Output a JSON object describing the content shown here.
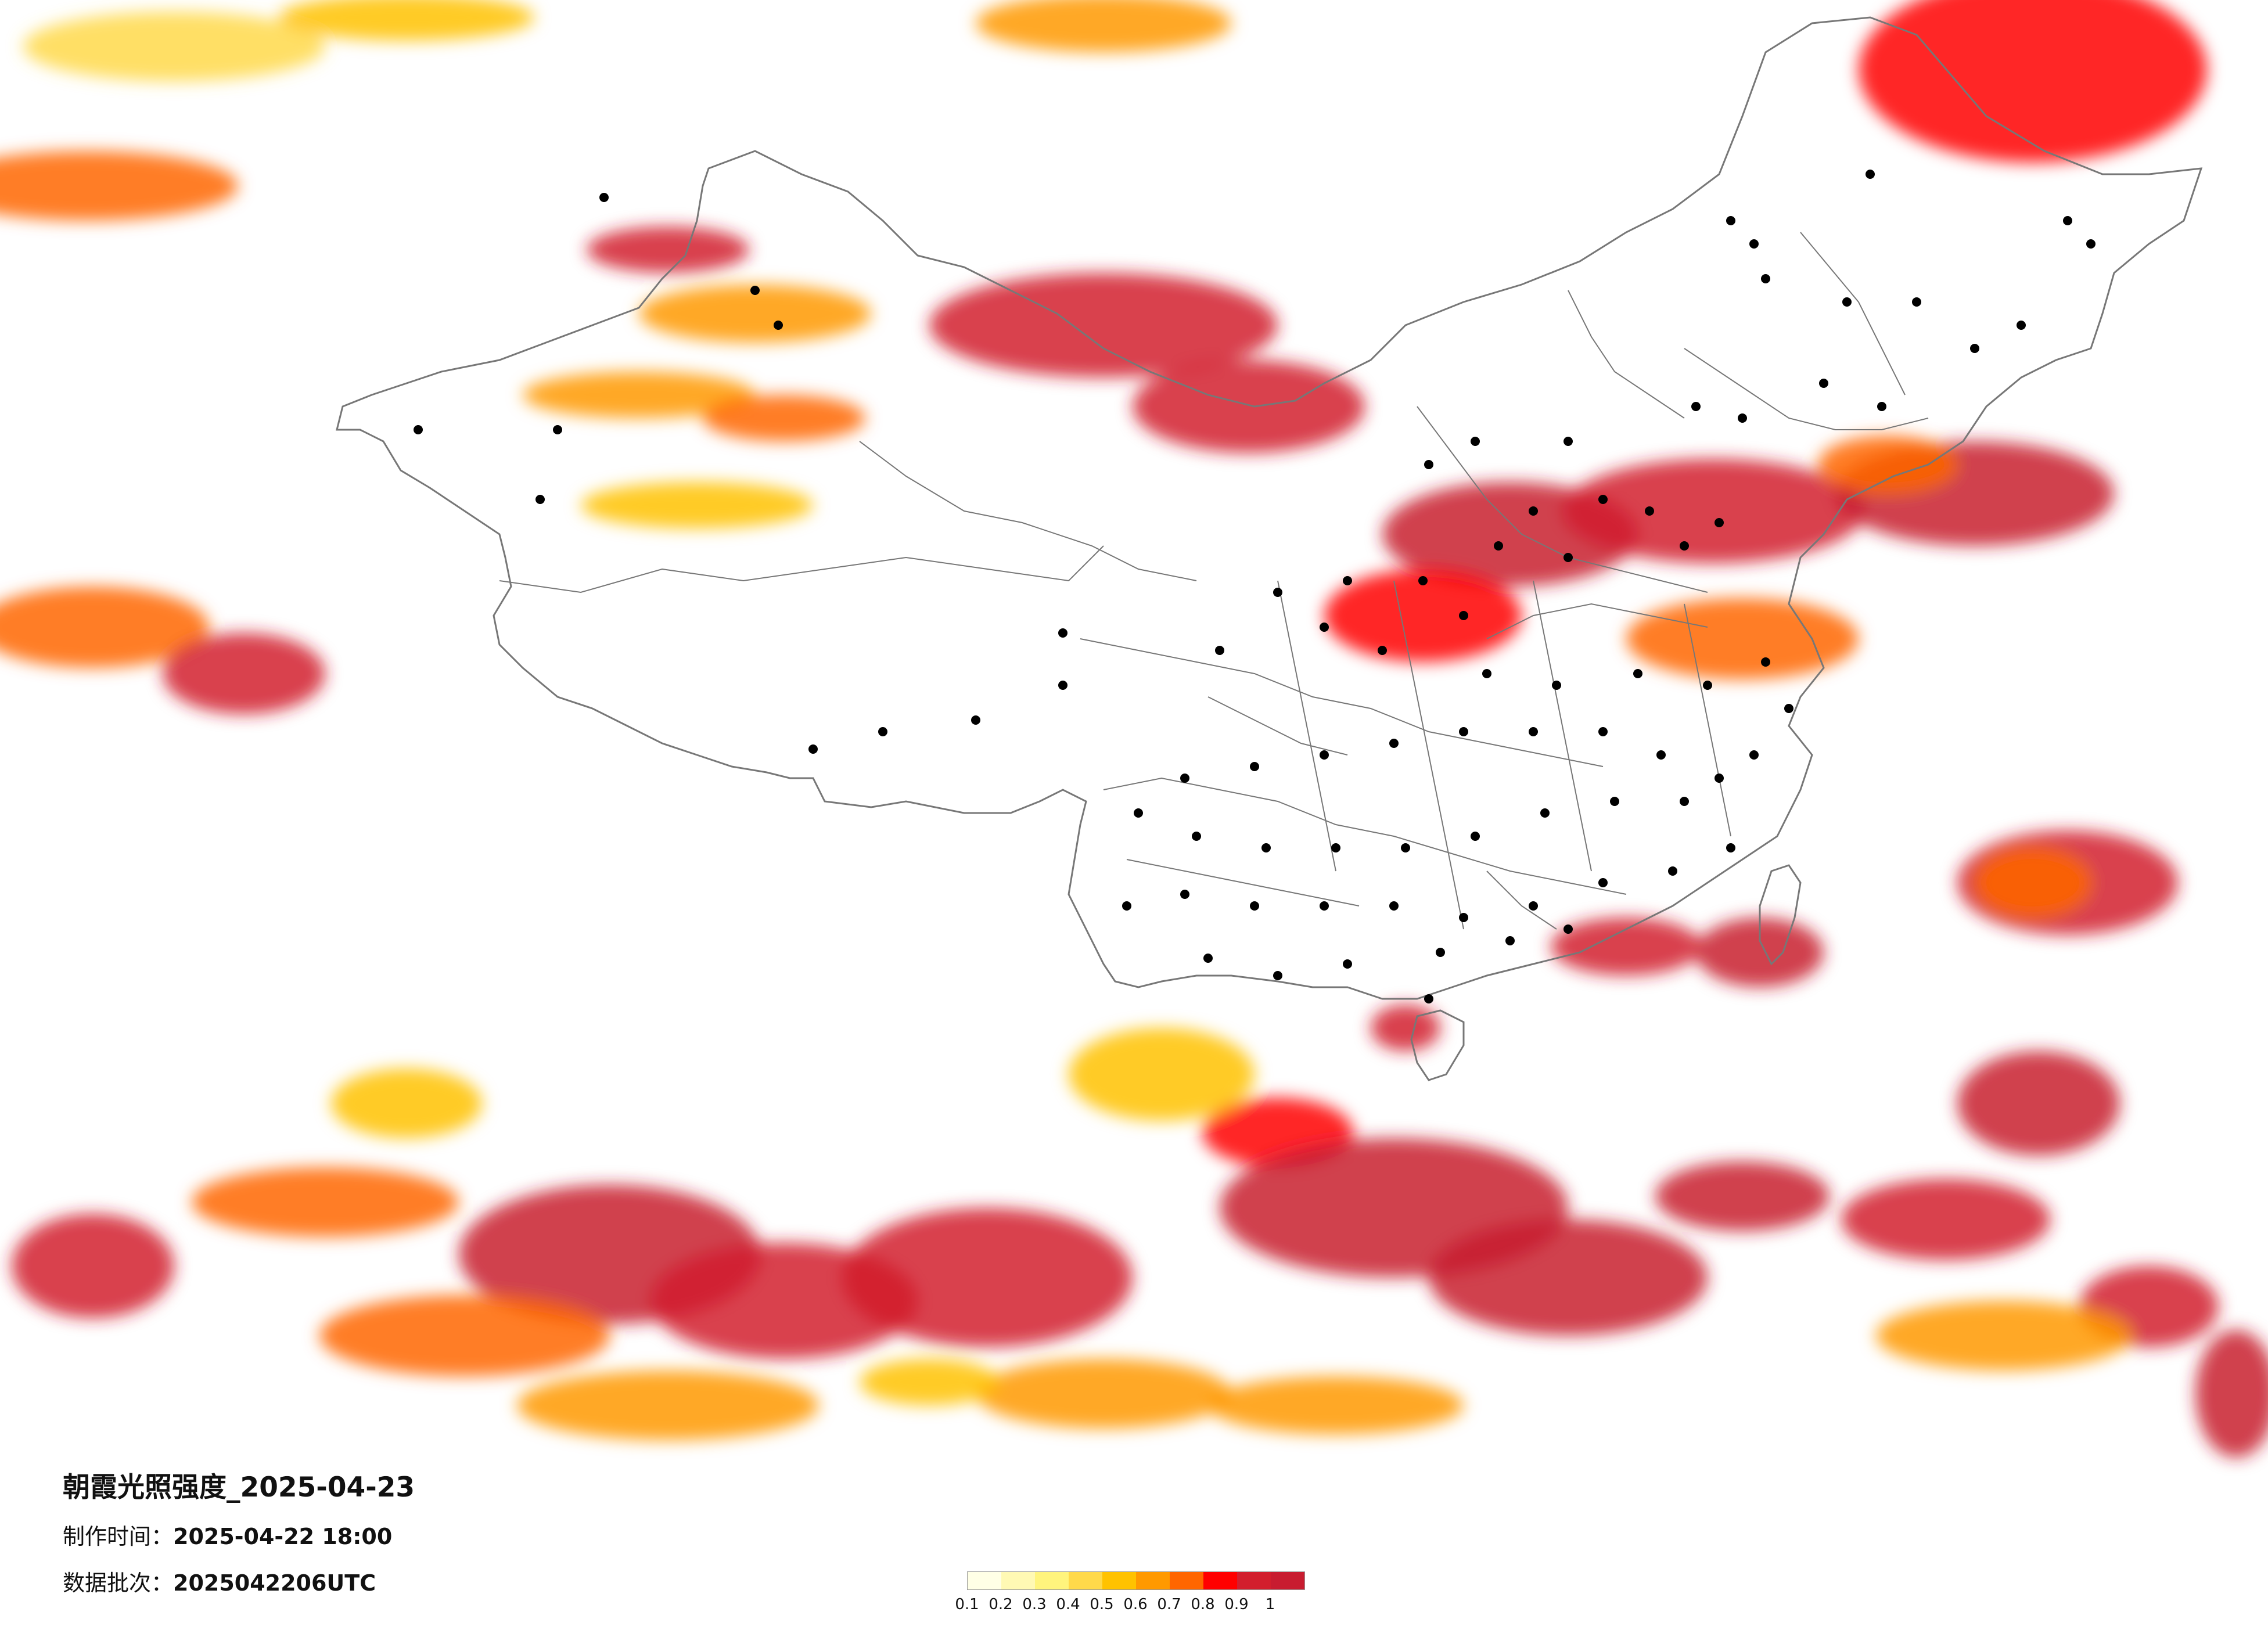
{
  "title": "朝霞光照强度_2025-04-23",
  "production_time_label": "制作时间：",
  "production_time_value": "2025-04-22 18:00",
  "batch_label": "数据批次：",
  "batch_value": "2025042206UTC",
  "legend": {
    "colors": [
      "#ffffe6",
      "#fff9b4",
      "#fff47d",
      "#ffd94a",
      "#ffc200",
      "#ff9900",
      "#ff6600",
      "#ff0000",
      "#d21e2d",
      "#c81c30"
    ],
    "ticks": [
      "0.1",
      "0.2",
      "0.3",
      "0.4",
      "0.5",
      "0.6",
      "0.7",
      "0.8",
      "0.9",
      "1"
    ]
  },
  "map_colors": {
    "boundary": "#777777",
    "city_dot": "#000000"
  }
}
